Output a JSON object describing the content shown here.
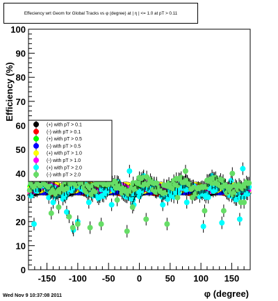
{
  "chart_data": {
    "type": "scatter",
    "title": "Effeciency wrt Geom for Global Tracks vs φ (degree) at | η | <= 1.0 at pT > 0.11",
    "xlabel": "φ (degree)",
    "ylabel": "Efficiency (%)",
    "xlim": [
      -180,
      180
    ],
    "ylim": [
      0,
      100
    ],
    "x_ticks": [
      -150,
      -100,
      -50,
      0,
      50,
      100,
      150
    ],
    "y_ticks": [
      0,
      10,
      20,
      30,
      40,
      50,
      60,
      70,
      80,
      90,
      100
    ],
    "grid": false,
    "legend_position": "middle-left",
    "series": [
      {
        "name": "(+) with pT > 0.1",
        "color": "#000000",
        "base": 31.5,
        "amp": 0.6,
        "scatter": 0.0
      },
      {
        "name": "(-) with pT > 0.1",
        "color": "#ff0000",
        "base": 32.0,
        "amp": 0.6,
        "scatter": 0.0
      },
      {
        "name": "(+) with pT > 0.5",
        "color": "#00ff00",
        "base": 33.5,
        "amp": 1.2,
        "scatter": 0.0
      },
      {
        "name": "(-) with pT > 0.5",
        "color": "#0000ff",
        "base": 33.0,
        "amp": 1.0,
        "scatter": 0.0
      },
      {
        "name": "(+) with pT > 1.0",
        "color": "#ffff00",
        "base": 34.0,
        "amp": 1.5,
        "scatter": 0.0
      },
      {
        "name": "(-) with pT > 1.0",
        "color": "#ff00ff",
        "base": 33.8,
        "amp": 1.5,
        "scatter": 0.0
      },
      {
        "name": "(+) with pT > 2.0",
        "color": "#00ffff",
        "base": 33.0,
        "amp": 2.0,
        "scatter": 1.0,
        "outliers": [
          [
            -171,
            19
          ],
          [
            -147,
            30
          ],
          [
            -140,
            28
          ],
          [
            -118,
            24
          ],
          [
            -107,
            16.5
          ],
          [
            -100,
            20
          ],
          [
            -82,
            28
          ],
          [
            -66,
            30
          ],
          [
            -45,
            27
          ],
          [
            -16,
            41
          ],
          [
            -9,
            27
          ],
          [
            7,
            39
          ],
          [
            28,
            35
          ],
          [
            38,
            27
          ],
          [
            62,
            33
          ],
          [
            77,
            28
          ],
          [
            104,
            18
          ],
          [
            118,
            39
          ],
          [
            134,
            19.5
          ],
          [
            149,
            37
          ],
          [
            163,
            21
          ],
          [
            168,
            42
          ]
        ]
      },
      {
        "name": "(-) with pT > 2.0",
        "color": "#66dd66",
        "base": 35.0,
        "amp": 2.0,
        "scatter": 1.0,
        "outliers": [
          [
            -161,
            35
          ],
          [
            -143,
            23.5
          ],
          [
            -131,
            26
          ],
          [
            -114,
            22
          ],
          [
            -108,
            17.5
          ],
          [
            -100,
            19
          ],
          [
            -80,
            17.5
          ],
          [
            -62,
            19
          ],
          [
            -36,
            29
          ],
          [
            -20,
            16
          ],
          [
            -11,
            26
          ],
          [
            3,
            38
          ],
          [
            11,
            21
          ],
          [
            28,
            36
          ],
          [
            45,
            19
          ],
          [
            62,
            30
          ],
          [
            75,
            41
          ],
          [
            86,
            30
          ],
          [
            106,
            24.5
          ],
          [
            123,
            36
          ],
          [
            137,
            24.5
          ],
          [
            151,
            40
          ],
          [
            165,
            28
          ],
          [
            170,
            28
          ]
        ]
      }
    ]
  },
  "footer": "Wed Nov  9 10:37:08 2011"
}
